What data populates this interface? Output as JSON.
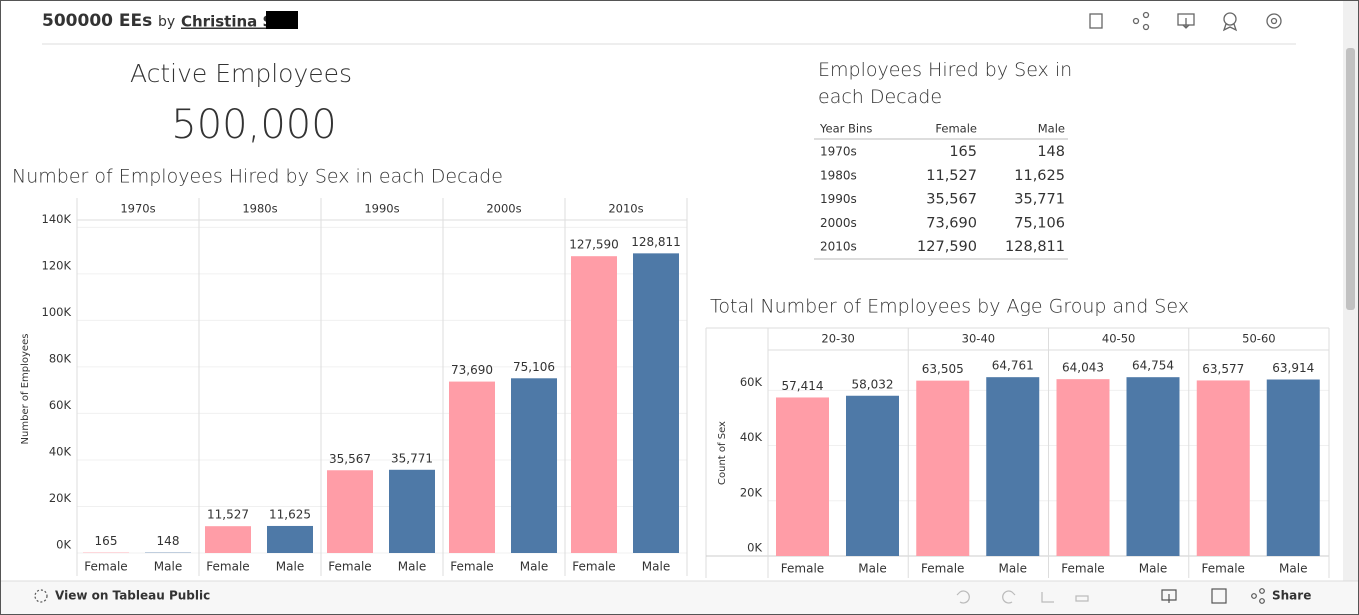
{
  "header": {
    "title": "500000 EEs",
    "by": "by",
    "author": "Christina S"
  },
  "kpi": {
    "title": "Active Employees",
    "value": "500,000"
  },
  "table": {
    "title": "Employees Hired by Sex in each Decade",
    "columns": [
      "Year Bins",
      "Female",
      "Male"
    ],
    "rows": [
      [
        "1970s",
        "165",
        "148"
      ],
      [
        "1980s",
        "11,527",
        "11,625"
      ],
      [
        "1990s",
        "35,567",
        "35,771"
      ],
      [
        "2000s",
        "73,690",
        "75,106"
      ],
      [
        "2010s",
        "127,590",
        "128,811"
      ]
    ],
    "highlight": [
      1,
      2,
      2,
      2,
      2
    ],
    "highlight_color": "#c8283c"
  },
  "chart_data": [
    {
      "type": "bar",
      "title": "Number of Employees Hired by Sex in each Decade",
      "y_label": "Number of Employees",
      "facets": [
        "1970s",
        "1980s",
        "1990s",
        "2000s",
        "2010s"
      ],
      "categories": [
        "Female",
        "Male"
      ],
      "colors": [
        "#ff9da7",
        "#4e79a7"
      ],
      "values": [
        [
          165,
          148
        ],
        [
          11527,
          11625
        ],
        [
          35567,
          35771
        ],
        [
          73690,
          75106
        ],
        [
          127590,
          128811
        ]
      ],
      "value_labels": [
        [
          "165",
          "148"
        ],
        [
          "11,527",
          "11,625"
        ],
        [
          "35,567",
          "35,771"
        ],
        [
          "73,690",
          "75,106"
        ],
        [
          "127,590",
          "128,811"
        ]
      ],
      "ylim": [
        0,
        141000
      ],
      "yticks": [
        {
          "value": 0,
          "label": "0K"
        },
        {
          "value": 20000,
          "label": "20K"
        },
        {
          "value": 40000,
          "label": "40K"
        },
        {
          "value": 60000,
          "label": "60K"
        },
        {
          "value": 80000,
          "label": "80K"
        },
        {
          "value": 100000,
          "label": "100K"
        },
        {
          "value": 120000,
          "label": "120K"
        },
        {
          "value": 140000,
          "label": "140K"
        }
      ],
      "grid": true
    },
    {
      "type": "bar",
      "title": "Total Number of Employees by Age Group and Sex",
      "y_label": "Count of Sex",
      "facets": [
        "20-30",
        "30-40",
        "40-50",
        "50-60"
      ],
      "categories": [
        "Female",
        "Male"
      ],
      "colors": [
        "#ff9da7",
        "#4e79a7"
      ],
      "values": [
        [
          57414,
          58032
        ],
        [
          63505,
          64761
        ],
        [
          64043,
          64754
        ],
        [
          63577,
          63914
        ]
      ],
      "value_labels": [
        [
          "57,414",
          "58,032"
        ],
        [
          "63,505",
          "64,761"
        ],
        [
          "64,043",
          "64,754"
        ],
        [
          "63,577",
          "63,914"
        ]
      ],
      "ylim": [
        0,
        74600
      ],
      "yticks": [
        {
          "value": 0,
          "label": "0K"
        },
        {
          "value": 20000,
          "label": "20K"
        },
        {
          "value": 40000,
          "label": "40K"
        },
        {
          "value": 60000,
          "label": "60K"
        }
      ],
      "grid": true
    }
  ],
  "footer": {
    "link": "View on Tableau Public",
    "share": "Share"
  }
}
